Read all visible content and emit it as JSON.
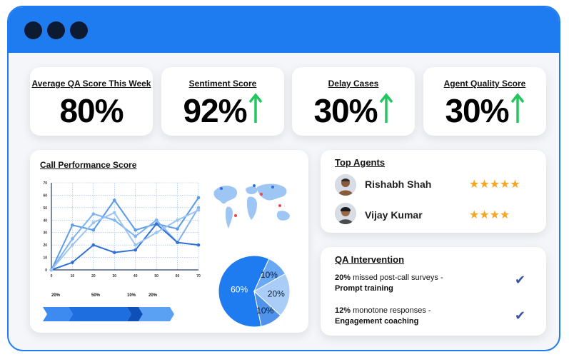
{
  "window": {
    "dots": 3
  },
  "stats": [
    {
      "label": "Average QA Score This Week",
      "value": "80%",
      "arrow": false
    },
    {
      "label": "Sentiment Score",
      "value": "92%",
      "arrow": true
    },
    {
      "label": "Delay Cases",
      "value": "30%",
      "arrow": true
    },
    {
      "label": "Agent Quality Score",
      "value": "30%",
      "arrow": true
    }
  ],
  "call_performance": {
    "title": "Call Performance Score",
    "segment_labels": [
      "20%",
      "50%",
      "10%",
      "20%"
    ]
  },
  "chart_data": [
    {
      "type": "line",
      "title": "Call Performance Score",
      "x": [
        0,
        10,
        20,
        30,
        40,
        50,
        60,
        70
      ],
      "xlim": [
        0,
        70
      ],
      "ylim": [
        0,
        70
      ],
      "yticks": [
        0,
        10,
        20,
        30,
        40,
        50,
        60,
        70
      ],
      "grid": true,
      "series": [
        {
          "values": [
            0,
            36,
            32,
            56,
            32,
            37,
            33,
            58
          ],
          "color": "#5b9ae8"
        },
        {
          "values": [
            0,
            25,
            45,
            40,
            27,
            40,
            22,
            50
          ],
          "color": "#7fb3ef"
        },
        {
          "values": [
            0,
            6,
            20,
            14,
            16,
            37,
            22,
            20
          ],
          "color": "#2f6fd6"
        },
        {
          "values": [
            0,
            20,
            38,
            46,
            20,
            30,
            40,
            48
          ],
          "color": "#9cc4f3"
        }
      ]
    },
    {
      "type": "pie",
      "slices": [
        {
          "label": "60%",
          "value": 60,
          "color": "#1e7cf0"
        },
        {
          "label": "10%",
          "value": 10,
          "color": "#6aa8f2"
        },
        {
          "label": "20%",
          "value": 20,
          "color": "#a9cdf7"
        },
        {
          "label": "10%",
          "value": 10,
          "color": "#4f93ea"
        }
      ]
    }
  ],
  "top_agents": {
    "title": "Top Agents",
    "agents": [
      {
        "name": "Rishabh Shah",
        "stars": "★★★★★"
      },
      {
        "name": "Vijay Kumar",
        "stars": "★★★★"
      }
    ]
  },
  "qa_intervention": {
    "title": "QA Intervention",
    "items": [
      {
        "percent": "20%",
        "text": " missed post-call surveys -",
        "action": "Prompt training"
      },
      {
        "percent": "12%",
        "text": " monotone responses -",
        "action": "Engagement coaching"
      }
    ]
  },
  "colors": {
    "accent": "#1e7cf0",
    "arrow_green": "#22c55e",
    "star": "#f5a623"
  }
}
